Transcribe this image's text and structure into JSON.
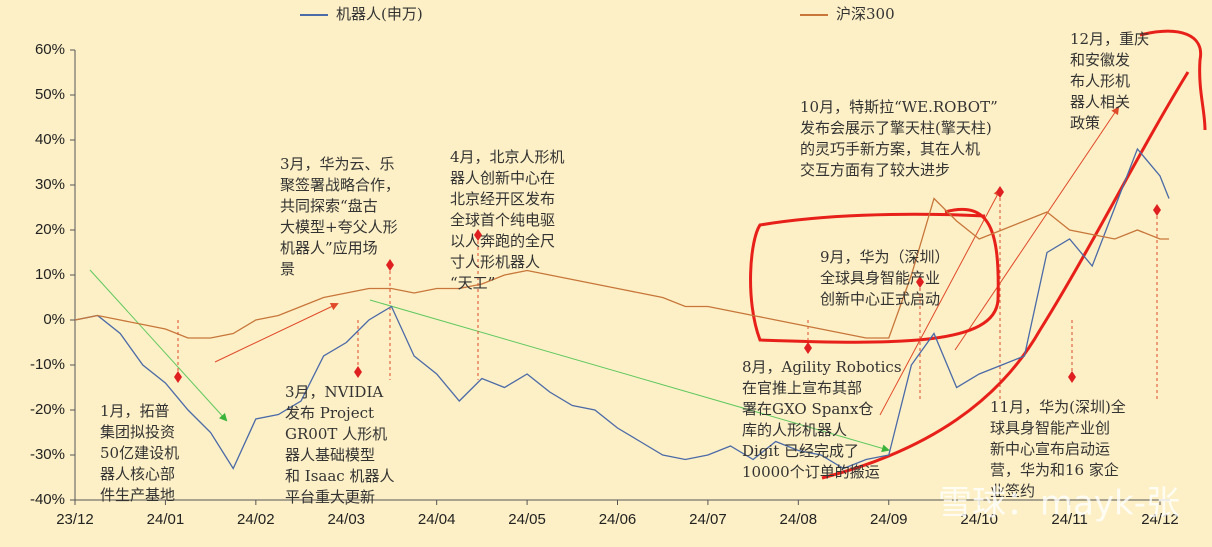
{
  "chart_data": {
    "type": "line",
    "series": [
      {
        "name": "机器人(申万)",
        "color": "#4a6aa8",
        "values": [
          0,
          1,
          -3,
          -10,
          -14,
          -20,
          -25,
          -33,
          -22,
          -21,
          -18,
          -8,
          -5,
          0,
          3,
          -8,
          -12,
          -18,
          -13,
          -15,
          -12,
          -16,
          -19,
          -20,
          -24,
          -27,
          -30,
          -31,
          -30,
          -28,
          -31,
          -27,
          -29,
          -30,
          -33,
          -31,
          -30,
          -10,
          -3,
          -15,
          -12,
          -10,
          -8,
          15,
          18,
          12,
          25,
          38,
          32,
          27
        ]
      },
      {
        "name": "沪深300",
        "color": "#c8763a",
        "values": [
          0,
          1,
          0,
          -1,
          -2,
          -4,
          -4,
          -3,
          0,
          1,
          3,
          5,
          6,
          7,
          7,
          6,
          7,
          7,
          8,
          10,
          11,
          10,
          9,
          8,
          7,
          6,
          5,
          3,
          3,
          2,
          1,
          0,
          -1,
          -2,
          -3,
          -4,
          -4,
          10,
          27,
          22,
          18,
          20,
          22,
          24,
          20,
          19,
          18,
          20,
          18,
          18
        ]
      }
    ],
    "x": [
      0,
      0.25,
      0.5,
      0.75,
      1,
      1.25,
      1.5,
      1.75,
      2,
      2.25,
      2.5,
      2.75,
      3,
      3.25,
      3.5,
      3.75,
      4,
      4.25,
      4.5,
      4.75,
      5,
      5.25,
      5.5,
      5.75,
      6,
      6.25,
      6.5,
      6.75,
      7,
      7.25,
      7.5,
      7.75,
      8,
      8.25,
      8.5,
      8.75,
      9,
      9.25,
      9.5,
      9.75,
      10,
      10.25,
      10.5,
      10.75,
      11,
      11.25,
      11.5,
      11.75,
      12,
      12.1
    ],
    "xlim": [
      0,
      12
    ],
    "xticks": [
      {
        "value": 0,
        "label": "23/12"
      },
      {
        "value": 1,
        "label": "24/01"
      },
      {
        "value": 2,
        "label": "24/02"
      },
      {
        "value": 3,
        "label": "24/03"
      },
      {
        "value": 4,
        "label": "24/04"
      },
      {
        "value": 5,
        "label": "24/05"
      },
      {
        "value": 6,
        "label": "24/06"
      },
      {
        "value": 7,
        "label": "24/07"
      },
      {
        "value": 8,
        "label": "24/08"
      },
      {
        "value": 9,
        "label": "24/09"
      },
      {
        "value": 10,
        "label": "24/10"
      },
      {
        "value": 11,
        "label": "24/11"
      },
      {
        "value": 12,
        "label": "24/12"
      }
    ],
    "ylim": [
      -40,
      60
    ],
    "yticks": [
      {
        "value": -40,
        "label": "-40%"
      },
      {
        "value": -30,
        "label": "-30%"
      },
      {
        "value": -20,
        "label": "-20%"
      },
      {
        "value": -10,
        "label": "-10%"
      },
      {
        "value": 0,
        "label": "0%"
      },
      {
        "value": 10,
        "label": "10%"
      },
      {
        "value": 20,
        "label": "20%"
      },
      {
        "value": 30,
        "label": "30%"
      },
      {
        "value": 40,
        "label": "40%"
      },
      {
        "value": 50,
        "label": "50%"
      },
      {
        "value": 60,
        "label": "60%"
      }
    ],
    "annotations": [
      {
        "lines": [
          "1月，拓普",
          "集团拟投资",
          "50亿建设机",
          "器人核心部",
          "件生产基地"
        ]
      },
      {
        "lines": [
          "3月，华为云、乐",
          "聚签署战略合作，",
          "共同探索“盘古",
          "大模型+夸父人形",
          "机器人”应用场",
          "景"
        ]
      },
      {
        "lines": [
          "3月，NVIDIA",
          "发布 Project",
          "GR00T 人形机",
          "器人基础模型",
          "和 Isaac 机器人",
          "平台重大更新"
        ]
      },
      {
        "lines": [
          "4月，北京人形机",
          "器人创新中心在",
          "北京经开区发布",
          "全球首个纯电驱",
          "以人奔跑的全尺",
          "寸人形机器人",
          "“天工”"
        ]
      },
      {
        "lines": [
          "8月，Agility Robotics",
          "在官推上宣布其部",
          "署在GXO Spanx仓",
          "库的人形机器人",
          "Digit 已经完成了",
          "10000个订单的搬运"
        ]
      },
      {
        "lines": [
          "9月，华为（深圳）",
          "全球具身智能产业",
          "创新中心正式启动"
        ]
      },
      {
        "lines": [
          "10月，特斯拉“WE.ROBOT”",
          "发布会展示了擎天柱(擎天柱)",
          "的灵巧手新方案，其在人机",
          "交互方面有了较大进步"
        ]
      },
      {
        "lines": [
          "11月，华为(深圳)全",
          "球具身智能产业创",
          "新中心宣布启动运",
          "营，华为和16 家企",
          "业签约"
        ]
      },
      {
        "lines": [
          "12月，重庆",
          "和安徽发",
          "布人形机",
          "器人相关",
          "政策"
        ]
      }
    ],
    "watermark": "雪球：mayk-张"
  }
}
